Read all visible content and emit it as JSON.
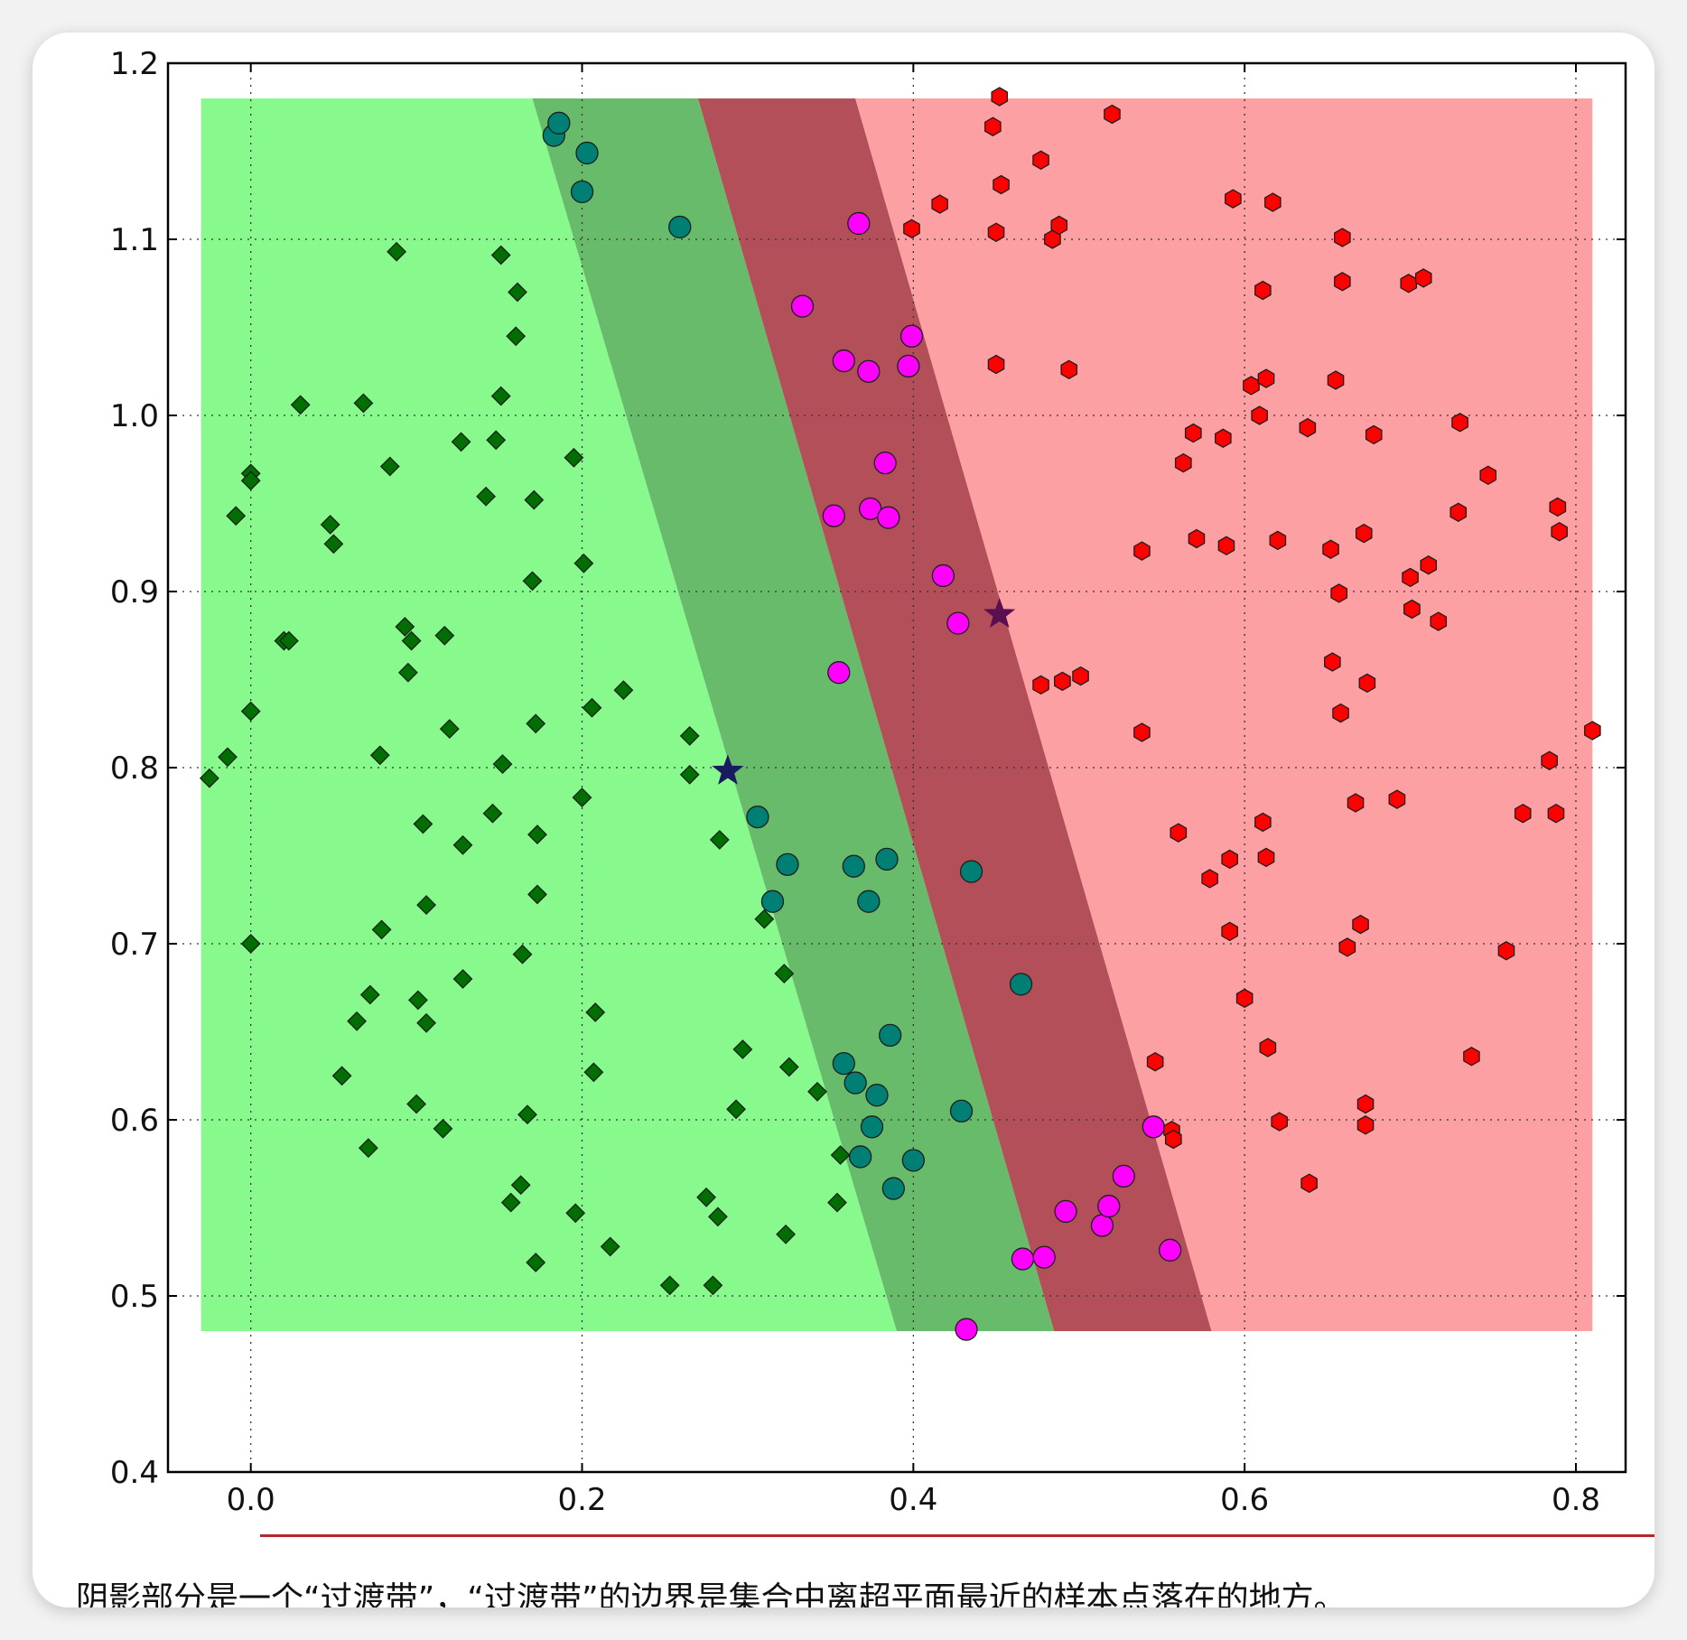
{
  "caption": "阴影部分是一个“过渡带”，“过渡带”的边界是集合中离超平面最近的样本点落在的地方。",
  "colors": {
    "green_region": "#88f98d",
    "green_band": "#67bb6b",
    "red_band": "#b34f58",
    "red_region": "#fda0a4",
    "green_point": "#006e00",
    "teal_point": "#008075",
    "magenta_point": "#ff00ff",
    "red_point": "#ff0000",
    "green_star": "#1a1a5e",
    "red_star": "#5a1050"
  },
  "chart_data": {
    "type": "scatter",
    "xlim": [
      -0.05,
      0.83
    ],
    "ylim": [
      0.4,
      1.2
    ],
    "xticks": [
      "0.0",
      "0.2",
      "0.4",
      "0.6",
      "0.8"
    ],
    "yticks": [
      "0.4",
      "0.5",
      "0.6",
      "0.7",
      "0.8",
      "0.9",
      "1.0",
      "1.1",
      "1.2"
    ],
    "grid": true,
    "regions": {
      "extent": {
        "x": [
          -0.03,
          0.81
        ],
        "y": [
          0.48,
          1.18
        ]
      },
      "green_edge": [
        [
          0.17,
          1.18
        ],
        [
          0.39,
          0.48
        ]
      ],
      "middle_line": [
        [
          0.27,
          1.18
        ],
        [
          0.485,
          0.48
        ]
      ],
      "red_edge": [
        [
          0.365,
          1.18
        ],
        [
          0.58,
          0.48
        ]
      ]
    },
    "series": [
      {
        "marker": "diamond",
        "color": "#006e00",
        "points": [
          [
            -0.025,
            0.794
          ],
          [
            -0.014,
            0.806
          ],
          [
            -0.009,
            0.943
          ],
          [
            0.0,
            0.967
          ],
          [
            0.0,
            0.963
          ],
          [
            0.0,
            0.832
          ],
          [
            0.0,
            0.7
          ],
          [
            0.02,
            0.872
          ],
          [
            0.023,
            0.872
          ],
          [
            0.03,
            1.006
          ],
          [
            0.048,
            0.938
          ],
          [
            0.05,
            0.927
          ],
          [
            0.055,
            0.625
          ],
          [
            0.064,
            0.656
          ],
          [
            0.068,
            1.007
          ],
          [
            0.072,
            0.671
          ],
          [
            0.071,
            0.584
          ],
          [
            0.078,
            0.807
          ],
          [
            0.079,
            0.708
          ],
          [
            0.084,
            0.971
          ],
          [
            0.088,
            1.093
          ],
          [
            0.093,
            0.88
          ],
          [
            0.095,
            0.854
          ],
          [
            0.097,
            0.872
          ],
          [
            0.1,
            0.609
          ],
          [
            0.101,
            0.668
          ],
          [
            0.104,
            0.768
          ],
          [
            0.106,
            0.722
          ],
          [
            0.106,
            0.655
          ],
          [
            0.116,
            0.595
          ],
          [
            0.117,
            0.875
          ],
          [
            0.12,
            0.822
          ],
          [
            0.127,
            0.985
          ],
          [
            0.128,
            0.68
          ],
          [
            0.128,
            0.756
          ],
          [
            0.142,
            0.954
          ],
          [
            0.146,
            0.774
          ],
          [
            0.148,
            0.986
          ],
          [
            0.151,
            1.091
          ],
          [
            0.151,
            1.011
          ],
          [
            0.152,
            0.802
          ],
          [
            0.157,
            0.553
          ],
          [
            0.16,
            1.045
          ],
          [
            0.161,
            1.07
          ],
          [
            0.163,
            0.563
          ],
          [
            0.164,
            0.694
          ],
          [
            0.167,
            0.603
          ],
          [
            0.17,
            0.906
          ],
          [
            0.171,
            0.952
          ],
          [
            0.172,
            0.825
          ],
          [
            0.173,
            0.762
          ],
          [
            0.173,
            0.728
          ],
          [
            0.172,
            0.519
          ],
          [
            0.195,
            0.976
          ],
          [
            0.196,
            0.547
          ],
          [
            0.2,
            0.783
          ],
          [
            0.201,
            0.916
          ],
          [
            0.206,
            0.834
          ],
          [
            0.207,
            0.627
          ],
          [
            0.208,
            0.661
          ],
          [
            0.217,
            0.528
          ],
          [
            0.225,
            0.844
          ],
          [
            0.253,
            0.506
          ],
          [
            0.265,
            0.818
          ],
          [
            0.265,
            0.796
          ],
          [
            0.275,
            0.556
          ],
          [
            0.279,
            0.506
          ],
          [
            0.282,
            0.545
          ],
          [
            0.283,
            0.759
          ],
          [
            0.293,
            0.606
          ],
          [
            0.297,
            0.64
          ],
          [
            0.31,
            0.714
          ],
          [
            0.322,
            0.683
          ],
          [
            0.323,
            0.535
          ],
          [
            0.325,
            0.63
          ],
          [
            0.342,
            0.616
          ],
          [
            0.354,
            0.553
          ],
          [
            0.356,
            0.58
          ]
        ]
      },
      {
        "marker": "circle",
        "color": "#008075",
        "points": [
          [
            0.183,
            1.159
          ],
          [
            0.186,
            1.166
          ],
          [
            0.2,
            1.127
          ],
          [
            0.203,
            1.149
          ],
          [
            0.259,
            1.107
          ],
          [
            0.306,
            0.772
          ],
          [
            0.315,
            0.724
          ],
          [
            0.324,
            0.745
          ],
          [
            0.358,
            0.632
          ],
          [
            0.364,
            0.744
          ],
          [
            0.365,
            0.621
          ],
          [
            0.368,
            0.579
          ],
          [
            0.373,
            0.724
          ],
          [
            0.375,
            0.596
          ],
          [
            0.378,
            0.614
          ],
          [
            0.384,
            0.748
          ],
          [
            0.386,
            0.648
          ],
          [
            0.388,
            0.561
          ],
          [
            0.4,
            0.577
          ],
          [
            0.429,
            0.605
          ],
          [
            0.435,
            0.741
          ],
          [
            0.465,
            0.677
          ]
        ]
      },
      {
        "marker": "circle",
        "color": "#ff00ff",
        "points": [
          [
            0.333,
            1.062
          ],
          [
            0.352,
            0.943
          ],
          [
            0.355,
            0.854
          ],
          [
            0.358,
            1.031
          ],
          [
            0.367,
            1.109
          ],
          [
            0.373,
            1.025
          ],
          [
            0.374,
            0.947
          ],
          [
            0.383,
            0.973
          ],
          [
            0.385,
            0.942
          ],
          [
            0.397,
            1.028
          ],
          [
            0.399,
            1.045
          ],
          [
            0.418,
            0.909
          ],
          [
            0.427,
            0.882
          ],
          [
            0.432,
            0.481
          ],
          [
            0.466,
            0.521
          ],
          [
            0.479,
            0.522
          ],
          [
            0.492,
            0.548
          ],
          [
            0.514,
            0.54
          ],
          [
            0.518,
            0.551
          ],
          [
            0.527,
            0.568
          ],
          [
            0.545,
            0.596
          ],
          [
            0.555,
            0.526
          ]
        ]
      },
      {
        "marker": "hexagon",
        "color": "#ff0000",
        "points": [
          [
            0.399,
            1.106
          ],
          [
            0.416,
            1.12
          ],
          [
            0.448,
            1.164
          ],
          [
            0.45,
            1.104
          ],
          [
            0.45,
            1.029
          ],
          [
            0.452,
            1.181
          ],
          [
            0.453,
            1.131
          ],
          [
            0.477,
            1.145
          ],
          [
            0.477,
            0.847
          ],
          [
            0.484,
            1.1
          ],
          [
            0.488,
            1.108
          ],
          [
            0.49,
            0.849
          ],
          [
            0.494,
            1.026
          ],
          [
            0.501,
            0.852
          ],
          [
            0.52,
            1.171
          ],
          [
            0.538,
            0.923
          ],
          [
            0.538,
            0.82
          ],
          [
            0.546,
            0.633
          ],
          [
            0.556,
            0.594
          ],
          [
            0.557,
            0.589
          ],
          [
            0.56,
            0.763
          ],
          [
            0.563,
            0.973
          ],
          [
            0.569,
            0.99
          ],
          [
            0.571,
            0.93
          ],
          [
            0.579,
            0.737
          ],
          [
            0.587,
            0.987
          ],
          [
            0.589,
            0.926
          ],
          [
            0.591,
            0.707
          ],
          [
            0.591,
            0.748
          ],
          [
            0.593,
            1.123
          ],
          [
            0.6,
            0.669
          ],
          [
            0.604,
            1.017
          ],
          [
            0.609,
            1.0
          ],
          [
            0.611,
            1.071
          ],
          [
            0.611,
            0.769
          ],
          [
            0.613,
            0.749
          ],
          [
            0.614,
            0.641
          ],
          [
            0.613,
            1.021
          ],
          [
            0.617,
            1.121
          ],
          [
            0.62,
            0.929
          ],
          [
            0.621,
            0.599
          ],
          [
            0.638,
            0.993
          ],
          [
            0.639,
            0.564
          ],
          [
            0.652,
            0.924
          ],
          [
            0.653,
            0.86
          ],
          [
            0.655,
            1.02
          ],
          [
            0.657,
            0.899
          ],
          [
            0.658,
            0.831
          ],
          [
            0.659,
            1.076
          ],
          [
            0.659,
            1.101
          ],
          [
            0.662,
            0.698
          ],
          [
            0.667,
            0.78
          ],
          [
            0.67,
            0.711
          ],
          [
            0.672,
            0.933
          ],
          [
            0.673,
            0.597
          ],
          [
            0.673,
            0.609
          ],
          [
            0.674,
            0.848
          ],
          [
            0.678,
            0.989
          ],
          [
            0.692,
            0.782
          ],
          [
            0.699,
            1.075
          ],
          [
            0.7,
            0.908
          ],
          [
            0.701,
            0.89
          ],
          [
            0.708,
            1.078
          ],
          [
            0.711,
            0.915
          ],
          [
            0.717,
            0.883
          ],
          [
            0.729,
            0.945
          ],
          [
            0.73,
            0.996
          ],
          [
            0.737,
            0.636
          ],
          [
            0.747,
            0.966
          ],
          [
            0.758,
            0.696
          ],
          [
            0.768,
            0.774
          ],
          [
            0.784,
            0.804
          ],
          [
            0.788,
            0.774
          ],
          [
            0.789,
            0.948
          ],
          [
            0.79,
            0.934
          ],
          [
            0.81,
            0.821
          ]
        ]
      },
      {
        "marker": "star",
        "color": "#1a1a5e",
        "points": [
          [
            0.288,
            0.798
          ]
        ]
      },
      {
        "marker": "star",
        "color": "#5a1050",
        "points": [
          [
            0.452,
            0.887
          ]
        ]
      }
    ]
  }
}
